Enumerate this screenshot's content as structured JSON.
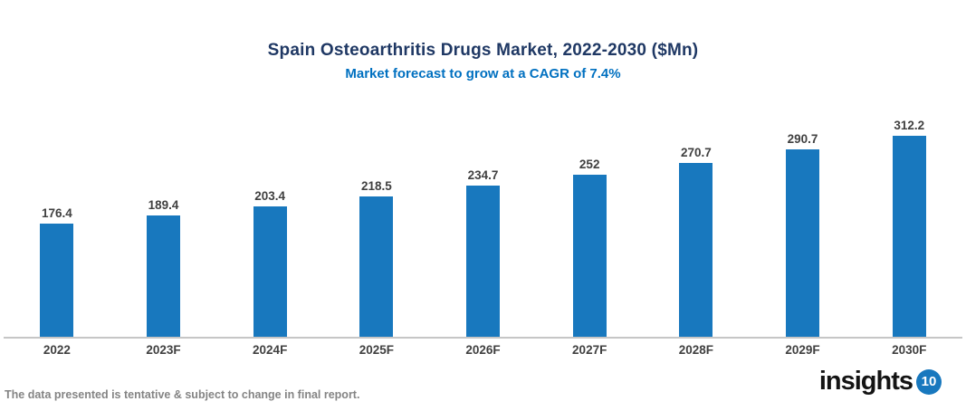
{
  "chart": {
    "title": "Spain Osteoarthritis Drugs Market, 2022-2030 ($Mn)",
    "subtitle": "Market forecast to grow at a CAGR of 7.4%"
  },
  "chart_data": {
    "type": "bar",
    "title": "Spain Osteoarthritis Drugs Market, 2022-2030 ($Mn)",
    "subtitle": "Market forecast to grow at a CAGR of 7.4%",
    "categories": [
      "2022",
      "2023F",
      "2024F",
      "2025F",
      "2026F",
      "2027F",
      "2028F",
      "2029F",
      "2030F"
    ],
    "values": [
      176.4,
      189.4,
      203.4,
      218.5,
      234.7,
      252,
      270.7,
      290.7,
      312.2
    ],
    "cagr": "7.4%",
    "xlabel": "",
    "ylabel": "",
    "ylim": [
      0,
      350
    ],
    "grid": false,
    "legend": false,
    "bar_color": "#1878be",
    "title_color": "#1f3864",
    "subtitle_color": "#0070c0",
    "label_color": "#404040"
  },
  "footer": {
    "note": "The data presented is tentative & subject to change in final report.",
    "logo_text": "insights",
    "logo_badge": "10"
  }
}
